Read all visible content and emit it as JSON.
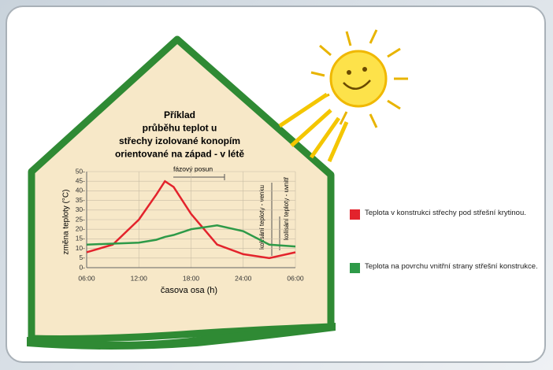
{
  "chart_data": {
    "type": "line",
    "title_lines": [
      "Příklad",
      "průběhu teplot u",
      "střechy izolované konopím",
      "orientované na západ  - v létě"
    ],
    "x_label": "časova osa (h)",
    "y_label": "změna teploty (°C)",
    "annotations": [
      "fázový posun",
      "kolísání teploty - venku",
      "kolísání teploty - uvnitř"
    ],
    "x": [
      6,
      9,
      12,
      14,
      15,
      16,
      18,
      21,
      24,
      27,
      30
    ],
    "series": [
      {
        "name": "Teplota v konstrukci střechy pod střešní krytinou.",
        "color": "#e3232c",
        "values": [
          8,
          12,
          25,
          38,
          45,
          42,
          28,
          12,
          7,
          5,
          8
        ]
      },
      {
        "name": "Teplota na povrchu vnitřní strany střešní konstrukce.",
        "color": "#2e9a48",
        "values": [
          12,
          12.5,
          13,
          14.5,
          16,
          17,
          20,
          22,
          19,
          12,
          11
        ]
      }
    ],
    "xlim": [
      6,
      30
    ],
    "xticks": [
      {
        "value": 6,
        "label": "06:00"
      },
      {
        "value": 12,
        "label": "12:00"
      },
      {
        "value": 18,
        "label": "18:00"
      },
      {
        "value": 24,
        "label": "24:00"
      },
      {
        "value": 30,
        "label": "06:00"
      }
    ],
    "ylim": [
      0,
      50
    ],
    "yticks": [
      {
        "value": 0,
        "label": "0-"
      },
      {
        "value": 5,
        "label": "5-"
      },
      {
        "value": 10,
        "label": "10-"
      },
      {
        "value": 15,
        "label": "15-"
      },
      {
        "value": 20,
        "label": "20-"
      },
      {
        "value": 25,
        "label": "25-"
      },
      {
        "value": 30,
        "label": "30-"
      },
      {
        "value": 35,
        "label": "35-"
      },
      {
        "value": 40,
        "label": "40-"
      },
      {
        "value": 45,
        "label": "45-"
      },
      {
        "value": 50,
        "label": "50-"
      }
    ],
    "grid": true
  }
}
